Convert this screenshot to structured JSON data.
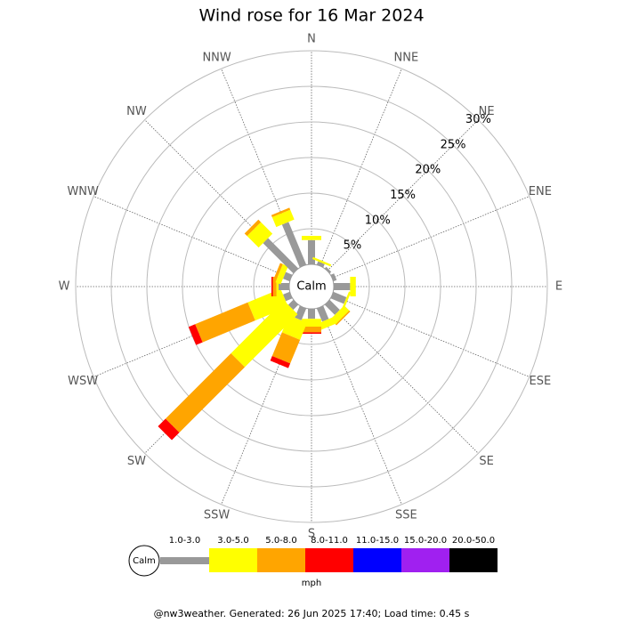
{
  "chart_data": {
    "type": "windrose",
    "title": "Wind rose for 16 Mar 2024",
    "calm_label": "Calm",
    "categories": [
      "N",
      "NNE",
      "NE",
      "ENE",
      "E",
      "ESE",
      "SE",
      "SSE",
      "S",
      "SSW",
      "SW",
      "WSW",
      "W",
      "WNW",
      "NW",
      "NNW"
    ],
    "ylim": [
      0,
      30
    ],
    "yticks": [
      {
        "value": 5,
        "label": "5%"
      },
      {
        "value": 10,
        "label": "10%"
      },
      {
        "value": 15,
        "label": "15%"
      },
      {
        "value": 20,
        "label": "20%"
      },
      {
        "value": 25,
        "label": "25%"
      },
      {
        "value": 30,
        "label": "30%"
      }
    ],
    "series": [
      {
        "name": "1.0-3.0",
        "color": "#999999",
        "values": [
          3.4,
          0.5,
          0.3,
          0.5,
          2.3,
          2,
          2,
          2,
          1.4,
          1.8,
          1,
          1,
          1.5,
          1,
          6,
          6.5
        ]
      },
      {
        "name": "3.0-5.0",
        "color": "#ffff00",
        "values": [
          0.6,
          0.3,
          0,
          0,
          0.8,
          0.3,
          1,
          1,
          1.1,
          2.6,
          10.5,
          5,
          0.3,
          0.8,
          2.3,
          1.5
        ]
      },
      {
        "name": "5.0-8.0",
        "color": "#ffa500",
        "values": [
          0,
          0,
          0,
          0,
          0,
          0,
          0.2,
          0,
          0.8,
          3.6,
          13,
          8,
          0.5,
          0.4,
          0.5,
          0.3
        ]
      },
      {
        "name": "8.0-11.0",
        "color": "#ff0000",
        "values": [
          0,
          0,
          0,
          0,
          0,
          0,
          0,
          0,
          0.2,
          0.7,
          1.5,
          1,
          0.2,
          0,
          0,
          0
        ]
      },
      {
        "name": "11.0-15.0",
        "color": "#0000ff",
        "values": [
          0,
          0,
          0,
          0,
          0,
          0,
          0,
          0,
          0,
          0,
          0,
          0,
          0,
          0,
          0,
          0
        ]
      },
      {
        "name": "15.0-20.0",
        "color": "#a020f0",
        "values": [
          0,
          0,
          0,
          0,
          0,
          0,
          0,
          0,
          0,
          0,
          0,
          0,
          0,
          0,
          0,
          0
        ]
      },
      {
        "name": "20.0-50.0",
        "color": "#000000",
        "values": [
          0,
          0,
          0,
          0,
          0,
          0,
          0,
          0,
          0,
          0,
          0,
          0,
          0,
          0,
          0,
          0
        ]
      }
    ],
    "unit": "mph",
    "footer": "@nw3weather. Generated: 26 Jun 2025 17:40; Load time: 0.45 s"
  }
}
